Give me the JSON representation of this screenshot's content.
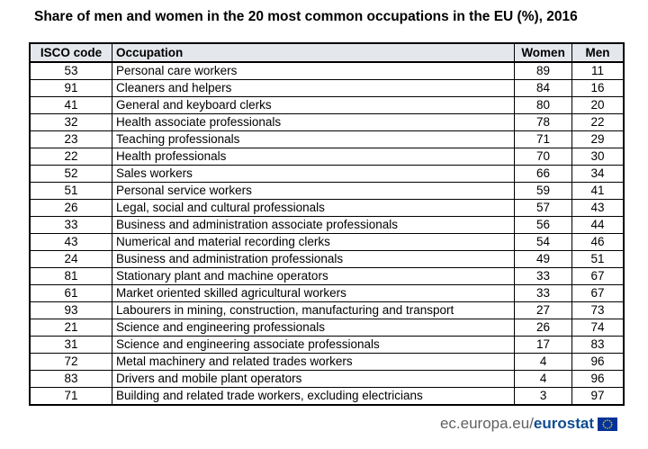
{
  "title": "Share of men and women in the 20 most common occupations in the EU (%), 2016",
  "table": {
    "headers": {
      "code": "ISCO code",
      "occupation": "Occupation",
      "women": "Women",
      "men": "Men"
    },
    "rows": [
      {
        "code": "53",
        "occupation": "Personal care workers",
        "women": "89",
        "men": "11"
      },
      {
        "code": "91",
        "occupation": "Cleaners and helpers",
        "women": "84",
        "men": "16"
      },
      {
        "code": "41",
        "occupation": "General and keyboard clerks",
        "women": "80",
        "men": "20"
      },
      {
        "code": "32",
        "occupation": "Health associate professionals",
        "women": "78",
        "men": "22"
      },
      {
        "code": "23",
        "occupation": "Teaching professionals",
        "women": "71",
        "men": "29"
      },
      {
        "code": "22",
        "occupation": "Health professionals",
        "women": "70",
        "men": "30"
      },
      {
        "code": "52",
        "occupation": "Sales workers",
        "women": "66",
        "men": "34"
      },
      {
        "code": "51",
        "occupation": "Personal service workers",
        "women": "59",
        "men": "41"
      },
      {
        "code": "26",
        "occupation": "Legal, social and cultural professionals",
        "women": "57",
        "men": "43"
      },
      {
        "code": "33",
        "occupation": "Business and administration associate professionals",
        "women": "56",
        "men": "44"
      },
      {
        "code": "43",
        "occupation": "Numerical and material recording clerks",
        "women": "54",
        "men": "46"
      },
      {
        "code": "24",
        "occupation": "Business and administration professionals",
        "women": "49",
        "men": "51"
      },
      {
        "code": "81",
        "occupation": "Stationary plant and machine operators",
        "women": "33",
        "men": "67"
      },
      {
        "code": "61",
        "occupation": "Market oriented skilled agricultural workers",
        "women": "33",
        "men": "67"
      },
      {
        "code": "93",
        "occupation": "Labourers in mining, construction, manufacturing and transport",
        "women": "27",
        "men": "73"
      },
      {
        "code": "21",
        "occupation": "Science and engineering professionals",
        "women": "26",
        "men": "74"
      },
      {
        "code": "31",
        "occupation": "Science and engineering associate professionals",
        "women": "17",
        "men": "83"
      },
      {
        "code": "72",
        "occupation": "Metal machinery and related trades workers",
        "women": "4",
        "men": "96"
      },
      {
        "code": "83",
        "occupation": "Drivers and mobile plant operators",
        "women": "4",
        "men": "96"
      },
      {
        "code": "71",
        "occupation": "Building and related trade workers, excluding electricians",
        "women": "3",
        "men": "97"
      }
    ]
  },
  "footer": {
    "site": "ec.europa.eu/",
    "brand": "eurostat",
    "flag_icon": "eu-flag-icon"
  },
  "colors": {
    "header_bg": "#e4e7ec",
    "brand": "#0f4c92",
    "flag_bg": "#003399",
    "flag_stars": "#ffcc00"
  }
}
